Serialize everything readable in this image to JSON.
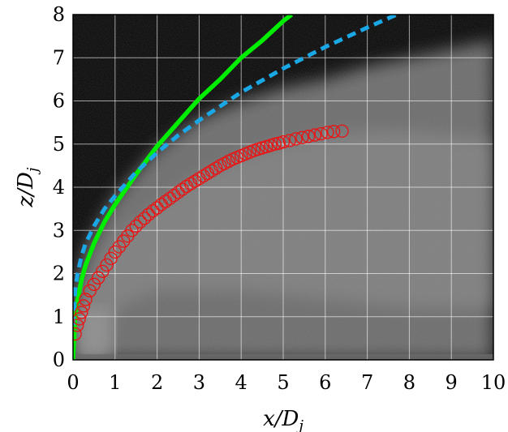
{
  "chart_data": {
    "type": "line",
    "xlabel": "x/D_j",
    "ylabel": "z/D_j",
    "xlabel_main": "x/D",
    "xlabel_sub": "j",
    "ylabel_main": "z/D",
    "ylabel_sub": "j",
    "xlim": [
      0,
      10
    ],
    "ylim": [
      0,
      8
    ],
    "x_ticks": [
      "0",
      "1",
      "2",
      "3",
      "4",
      "5",
      "6",
      "7",
      "8",
      "9",
      "10"
    ],
    "y_ticks": [
      "0",
      "1",
      "2",
      "3",
      "4",
      "5",
      "6",
      "7",
      "8"
    ],
    "grid": true,
    "background": "grayscale jet image",
    "series": [
      {
        "style": "solid",
        "color": "#00ee00",
        "x": [
          0.0,
          0.05,
          0.1,
          0.2,
          0.3,
          0.5,
          0.75,
          1.0,
          1.25,
          1.5,
          2.0,
          2.5,
          3.0,
          3.5,
          4.0,
          4.5,
          5.0,
          5.2
        ],
        "y": [
          0.0,
          1.0,
          1.35,
          1.85,
          2.2,
          2.7,
          3.2,
          3.6,
          3.95,
          4.3,
          4.95,
          5.5,
          6.05,
          6.5,
          7.0,
          7.4,
          7.85,
          8.0
        ]
      },
      {
        "style": "dashed",
        "color": "#1aa7e6",
        "x": [
          0.0,
          0.05,
          0.1,
          0.2,
          0.3,
          0.5,
          0.75,
          1.0,
          1.5,
          2.0,
          2.5,
          3.0,
          4.0,
          5.0,
          6.0,
          7.0,
          7.7
        ],
        "y": [
          0.8,
          1.6,
          1.95,
          2.4,
          2.7,
          3.1,
          3.5,
          3.8,
          4.35,
          4.8,
          5.2,
          5.55,
          6.2,
          6.75,
          7.25,
          7.7,
          8.0
        ]
      },
      {
        "style": "markers",
        "marker": "open-circle",
        "color": "#ee1111",
        "x": [
          0.05,
          0.1,
          0.15,
          0.2,
          0.25,
          0.3,
          0.4,
          0.5,
          0.6,
          0.7,
          0.8,
          0.9,
          1.0,
          1.1,
          1.2,
          1.3,
          1.4,
          1.5,
          1.6,
          1.7,
          1.8,
          1.9,
          2.0,
          2.1,
          2.2,
          2.3,
          2.4,
          2.5,
          2.6,
          2.7,
          2.8,
          2.9,
          3.0,
          3.1,
          3.2,
          3.3,
          3.4,
          3.5,
          3.6,
          3.7,
          3.8,
          3.9,
          4.0,
          4.1,
          4.2,
          4.3,
          4.4,
          4.5,
          4.6,
          4.7,
          4.8,
          4.9,
          5.0,
          5.15,
          5.3,
          5.45,
          5.6,
          5.75,
          5.9,
          6.05,
          6.2,
          6.4
        ],
        "y": [
          0.6,
          0.8,
          0.95,
          1.1,
          1.25,
          1.4,
          1.6,
          1.75,
          1.9,
          2.05,
          2.2,
          2.35,
          2.5,
          2.62,
          2.75,
          2.87,
          3.0,
          3.1,
          3.2,
          3.28,
          3.37,
          3.45,
          3.52,
          3.6,
          3.67,
          3.74,
          3.81,
          3.88,
          3.95,
          4.02,
          4.08,
          4.14,
          4.2,
          4.26,
          4.32,
          4.38,
          4.44,
          4.5,
          4.55,
          4.6,
          4.65,
          4.69,
          4.73,
          4.77,
          4.81,
          4.85,
          4.88,
          4.91,
          4.94,
          4.97,
          5.0,
          5.02,
          5.05,
          5.08,
          5.12,
          5.15,
          5.18,
          5.21,
          5.24,
          5.27,
          5.29,
          5.3
        ]
      }
    ]
  }
}
